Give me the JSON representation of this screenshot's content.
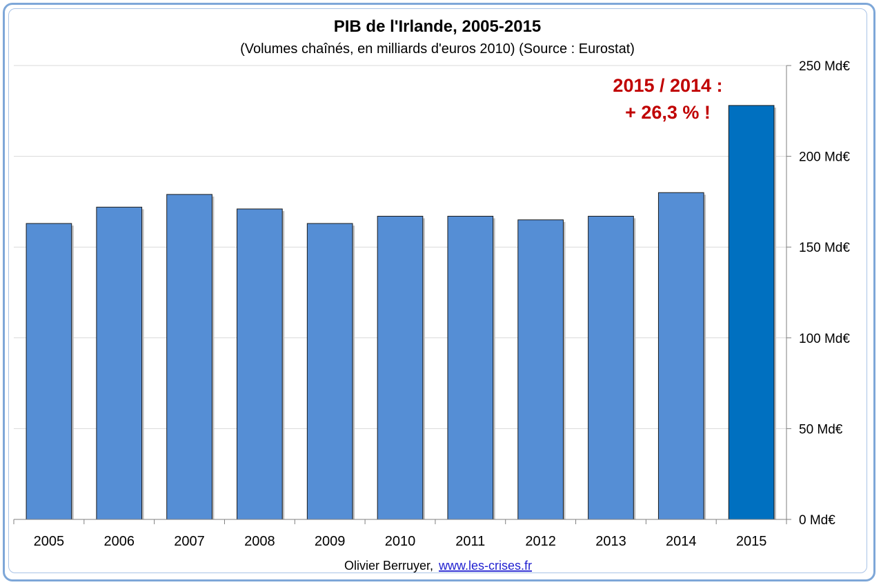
{
  "chart_data": {
    "type": "bar",
    "title": "PIB de l'Irlande, 2005-2015",
    "subtitle": "(Volumes chaînés, en milliards d'euros 2010) (Source : Eurostat)",
    "categories": [
      "2005",
      "2006",
      "2007",
      "2008",
      "2009",
      "2010",
      "2011",
      "2012",
      "2013",
      "2014",
      "2015"
    ],
    "values": [
      163,
      172,
      179,
      171,
      163,
      167,
      167,
      165,
      167,
      180,
      228
    ],
    "ylim": [
      0,
      250
    ],
    "yticks": [
      0,
      50,
      100,
      150,
      200,
      250
    ],
    "ytick_labels": [
      "0 Md€",
      "50 Md€",
      "100 Md€",
      "150 Md€",
      "200 Md€",
      "250 Md€"
    ],
    "y_axis_position": "right",
    "grid": true,
    "bar_color": "#558ed5",
    "highlight_color": "#0070c0",
    "highlight_category": "2015",
    "annotation": {
      "line1": "2015 / 2014 :",
      "line2": "+ 26,3 % !",
      "color": "#c00000"
    },
    "credit": {
      "author": "Olivier Berruyer,",
      "link": "www.les-crises.fr"
    }
  }
}
